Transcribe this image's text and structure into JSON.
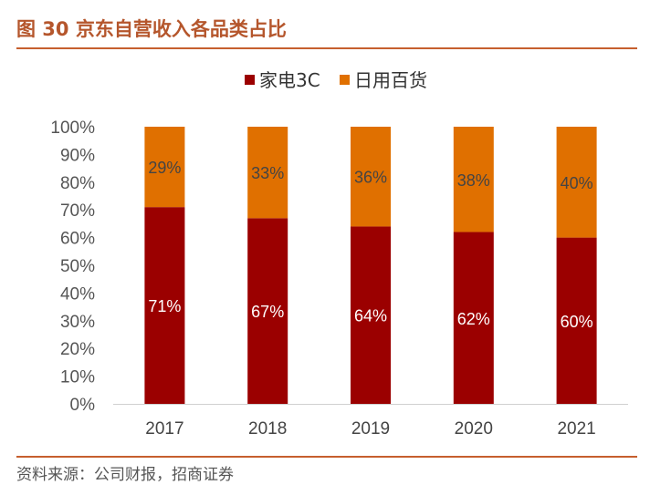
{
  "figure": {
    "title": "图 30  京东自营收入各品类占比",
    "source": "资料来源：公司财报，招商证券"
  },
  "colors": {
    "accent": "#c65f2e",
    "title": "#b5562c",
    "series_1": "#9b0000",
    "series_2": "#e07000"
  },
  "chart_data": {
    "type": "bar",
    "stacked": true,
    "categories": [
      "2017",
      "2018",
      "2019",
      "2020",
      "2021"
    ],
    "series": [
      {
        "name": "家电3C",
        "values": [
          71,
          67,
          64,
          62,
          60
        ],
        "labels": [
          "71%",
          "67%",
          "64%",
          "62%",
          "60%"
        ],
        "color": "#9b0000"
      },
      {
        "name": "日用百货",
        "values": [
          29,
          33,
          36,
          38,
          40
        ],
        "labels": [
          "29%",
          "33%",
          "36%",
          "38%",
          "40%"
        ],
        "color": "#e07000"
      }
    ],
    "ylim": [
      0,
      100
    ],
    "yticks": [
      "0%",
      "10%",
      "20%",
      "30%",
      "40%",
      "50%",
      "60%",
      "70%",
      "80%",
      "90%",
      "100%"
    ],
    "grid": false,
    "legend": "top-center"
  }
}
